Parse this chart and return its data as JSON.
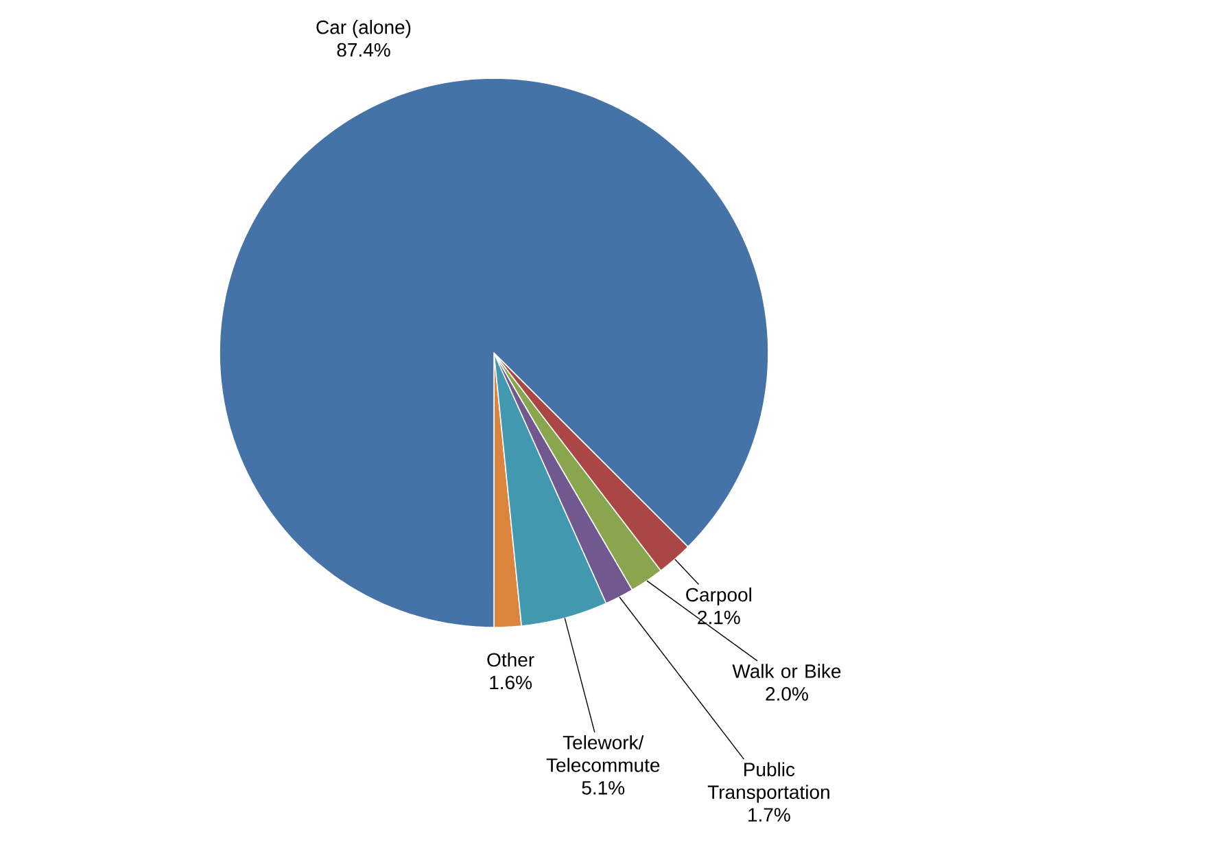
{
  "chart_data": {
    "type": "pie",
    "categories": [
      "Car (alone)",
      "Carpool",
      "Walk or Bike",
      "Public Transportation",
      "Telework/ Telecommute",
      "Other"
    ],
    "values": [
      87.4,
      2.1,
      2.0,
      1.7,
      5.1,
      1.6
    ],
    "value_labels": [
      "87.4%",
      "2.1%",
      "2.0%",
      "1.7%",
      "5.1%",
      "1.6%"
    ],
    "colors": [
      "#4572a7",
      "#aa4643",
      "#89a54e",
      "#71588f",
      "#4198af",
      "#db843d"
    ]
  }
}
